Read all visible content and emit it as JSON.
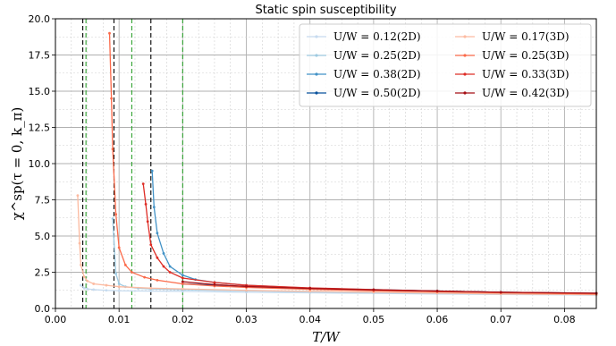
{
  "chart_data": {
    "type": "line",
    "title": "Static spin susceptibility",
    "xlabel": "T/W",
    "ylabel": "χ^sp(τ = 0, k_π)",
    "xlim": [
      0.0,
      0.085
    ],
    "ylim": [
      0.0,
      20.0
    ],
    "xticks": [
      0.0,
      0.01,
      0.02,
      0.03,
      0.04,
      0.05,
      0.06,
      0.07,
      0.08
    ],
    "xtick_labels": [
      "0.00",
      "0.01",
      "0.02",
      "0.03",
      "0.04",
      "0.05",
      "0.06",
      "0.07",
      "0.08"
    ],
    "yticks": [
      0.0,
      2.5,
      5.0,
      7.5,
      10.0,
      12.5,
      15.0,
      17.5,
      20.0
    ],
    "ytick_labels": [
      "0.0",
      "2.5",
      "5.0",
      "7.5",
      "10.0",
      "12.5",
      "15.0",
      "17.5",
      "20.0"
    ],
    "grid": "major-minor",
    "legend_position": "top-right",
    "legend_columns": 2,
    "series": [
      {
        "name": "U/W = 0.12(2D)",
        "color": "#c6dbef",
        "x": [
          0.004,
          0.0045,
          0.005,
          0.006,
          0.008,
          0.01,
          0.015,
          0.02,
          0.03,
          0.04,
          0.05,
          0.06,
          0.07,
          0.085
        ],
        "y": [
          1.6,
          1.4,
          1.35,
          1.3,
          1.25,
          1.22,
          1.2,
          1.18,
          1.12,
          1.08,
          1.04,
          1.0,
          0.97,
          0.92
        ]
      },
      {
        "name": "U/W = 0.25(2D)",
        "color": "#9ecae1",
        "x": [
          0.009,
          0.0095,
          0.01,
          0.011,
          0.013,
          0.015,
          0.02,
          0.03,
          0.04,
          0.05,
          0.06,
          0.07,
          0.085
        ],
        "y": [
          6.2,
          2.4,
          1.7,
          1.5,
          1.4,
          1.35,
          1.3,
          1.22,
          1.16,
          1.1,
          1.05,
          1.0,
          0.95
        ]
      },
      {
        "name": "U/W = 0.38(2D)",
        "color": "#4292c6",
        "x": [
          0.0152,
          0.0155,
          0.016,
          0.017,
          0.018,
          0.02,
          0.022,
          0.025,
          0.03,
          0.04,
          0.05,
          0.06,
          0.07,
          0.085
        ],
        "y": [
          9.5,
          7.0,
          5.2,
          3.8,
          2.9,
          2.3,
          2.0,
          1.8,
          1.6,
          1.4,
          1.3,
          1.2,
          1.12,
          1.02
        ]
      },
      {
        "name": "U/W = 0.50(2D)",
        "color": "#08519c",
        "x": [
          0.02,
          0.025,
          0.03,
          0.04,
          0.05,
          0.06,
          0.07,
          0.085
        ],
        "y": [
          1.7,
          1.6,
          1.5,
          1.38,
          1.28,
          1.2,
          1.12,
          1.05
        ]
      },
      {
        "name": "U/W = 0.17(3D)",
        "color": "#fcbba1",
        "x": [
          0.0035,
          0.0038,
          0.004,
          0.0045,
          0.005,
          0.006,
          0.008,
          0.01,
          0.015,
          0.02,
          0.03,
          0.04,
          0.05,
          0.06,
          0.07,
          0.085
        ],
        "y": [
          7.8,
          4.5,
          3.0,
          2.2,
          1.9,
          1.7,
          1.6,
          1.5,
          1.4,
          1.35,
          1.25,
          1.18,
          1.12,
          1.06,
          1.0,
          0.95
        ]
      },
      {
        "name": "U/W = 0.25(3D)",
        "color": "#fb6a4a",
        "x": [
          0.0085,
          0.0088,
          0.009,
          0.0095,
          0.01,
          0.011,
          0.012,
          0.014,
          0.016,
          0.02,
          0.025,
          0.03,
          0.04,
          0.05,
          0.06,
          0.07,
          0.085
        ],
        "y": [
          19.0,
          14.5,
          11.0,
          6.5,
          4.2,
          3.0,
          2.5,
          2.15,
          1.95,
          1.7,
          1.55,
          1.45,
          1.32,
          1.22,
          1.15,
          1.08,
          1.0
        ]
      },
      {
        "name": "U/W = 0.33(3D)",
        "color": "#de2d26",
        "x": [
          0.0138,
          0.0142,
          0.0145,
          0.015,
          0.016,
          0.017,
          0.018,
          0.02,
          0.025,
          0.03,
          0.04,
          0.05,
          0.06,
          0.07,
          0.085
        ],
        "y": [
          8.6,
          7.2,
          6.0,
          4.4,
          3.5,
          2.9,
          2.5,
          2.1,
          1.8,
          1.6,
          1.42,
          1.3,
          1.2,
          1.12,
          1.05
        ]
      },
      {
        "name": "U/W = 0.42(3D)",
        "color": "#a50f15",
        "x": [
          0.02,
          0.025,
          0.03,
          0.04,
          0.05,
          0.06,
          0.07,
          0.085
        ],
        "y": [
          1.85,
          1.65,
          1.52,
          1.38,
          1.28,
          1.2,
          1.12,
          1.05
        ]
      }
    ],
    "reference_lines": [
      {
        "x": 0.0043,
        "color": "#000000"
      },
      {
        "x": 0.0048,
        "color": "#2ca02c"
      },
      {
        "x": 0.0092,
        "color": "#000000"
      },
      {
        "x": 0.012,
        "color": "#2ca02c"
      },
      {
        "x": 0.015,
        "color": "#000000"
      },
      {
        "x": 0.02,
        "color": "#2ca02c"
      }
    ]
  }
}
